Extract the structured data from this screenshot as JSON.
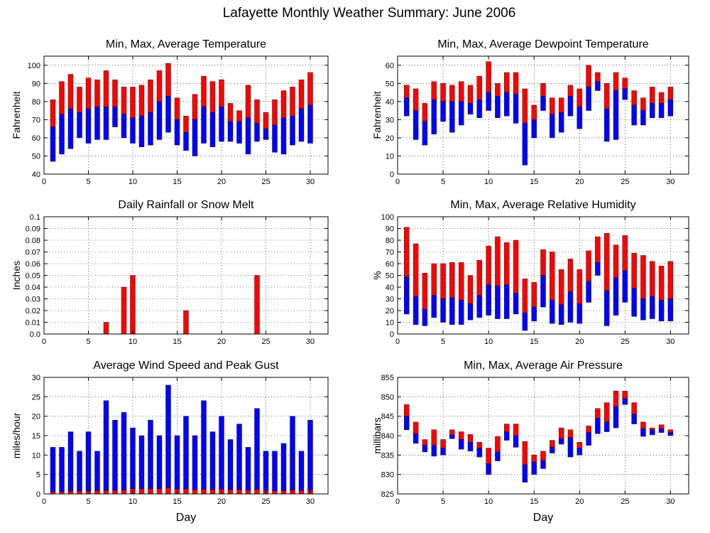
{
  "title": "Lafayette Monthly Weather Summary: June 2006",
  "colors": {
    "upper": "#ff0000",
    "lower": "#0000ff",
    "grid": "#000000"
  },
  "chart_data": [
    {
      "type": "bar",
      "title": "Min, Max, Average Temperature",
      "xlabel": "",
      "ylabel": "Fahrenheit",
      "ylim": [
        40,
        105
      ],
      "yticks": [
        40,
        50,
        60,
        70,
        80,
        90,
        100
      ],
      "xticks": [
        0,
        5,
        10,
        15,
        20,
        25,
        30
      ],
      "style": "floating",
      "x": [
        1,
        2,
        3,
        4,
        5,
        6,
        7,
        8,
        9,
        10,
        11,
        12,
        13,
        14,
        15,
        16,
        17,
        18,
        19,
        20,
        21,
        22,
        23,
        24,
        25,
        26,
        27,
        28,
        29,
        30
      ],
      "min": [
        47,
        51,
        54,
        60,
        57,
        59,
        59,
        66,
        60,
        57,
        55,
        56,
        59,
        63,
        56,
        53,
        50,
        57,
        55,
        58,
        58,
        57,
        51,
        58,
        59,
        52,
        51,
        56,
        58,
        57
      ],
      "avg": [
        66,
        73,
        76,
        74,
        76,
        77,
        77,
        77,
        73,
        71,
        72,
        74,
        80,
        83,
        70,
        63,
        70,
        77,
        74,
        77,
        69,
        69,
        71,
        68,
        65,
        67,
        71,
        72,
        76,
        78
      ],
      "max": [
        81,
        91,
        95,
        88,
        93,
        92,
        97,
        92,
        88,
        88,
        89,
        92,
        97,
        101,
        82,
        72,
        84,
        94,
        91,
        92,
        79,
        75,
        89,
        81,
        74,
        81,
        86,
        88,
        92,
        96
      ]
    },
    {
      "type": "bar",
      "title": "Min, Max, Average Dewpoint Temperature",
      "xlabel": "",
      "ylabel": "Fahrenheit",
      "ylim": [
        0,
        65
      ],
      "yticks": [
        0,
        10,
        20,
        30,
        40,
        50,
        60
      ],
      "xticks": [
        0,
        5,
        10,
        15,
        20,
        25,
        30
      ],
      "style": "floating",
      "x": [
        1,
        2,
        3,
        4,
        5,
        6,
        7,
        8,
        9,
        10,
        11,
        12,
        13,
        14,
        15,
        16,
        17,
        18,
        19,
        20,
        21,
        22,
        23,
        24,
        25,
        26,
        27,
        28,
        29,
        30
      ],
      "min": [
        32,
        19,
        16,
        22,
        29,
        23,
        27,
        33,
        31,
        35,
        31,
        32,
        28,
        5,
        20,
        35,
        20,
        23,
        32,
        25,
        35,
        46,
        18,
        19,
        41,
        27,
        27,
        31,
        31,
        32
      ],
      "avg": [
        42,
        35,
        29,
        41,
        40,
        40,
        40,
        39,
        41,
        45,
        43,
        45,
        44,
        28,
        30,
        43,
        33,
        34,
        43,
        37,
        48,
        51,
        36,
        46,
        47,
        38,
        35,
        39,
        39,
        41
      ],
      "max": [
        49,
        47,
        39,
        51,
        50,
        49,
        51,
        49,
        54,
        62,
        50,
        56,
        56,
        47,
        38,
        50,
        42,
        42,
        49,
        47,
        60,
        56,
        50,
        56,
        53,
        46,
        42,
        48,
        45,
        48
      ]
    },
    {
      "type": "bar",
      "title": "Daily Rainfall or Snow Melt",
      "xlabel": "",
      "ylabel": "Inches",
      "ylim": [
        0,
        0.1
      ],
      "yticks": [
        0,
        0.01,
        0.02,
        0.03,
        0.04,
        0.05,
        0.06,
        0.07,
        0.08,
        0.09,
        0.1
      ],
      "ytick_labels": [
        "0.0",
        "0.01",
        "0.02",
        "0.03",
        "0.04",
        "0.05",
        "0.06",
        "0.07",
        "0.08",
        "0.09",
        "0.1"
      ],
      "xticks": [
        0,
        5,
        10,
        15,
        20,
        25,
        30
      ],
      "style": "simple",
      "x": [
        1,
        2,
        3,
        4,
        5,
        6,
        7,
        8,
        9,
        10,
        11,
        12,
        13,
        14,
        15,
        16,
        17,
        18,
        19,
        20,
        21,
        22,
        23,
        24,
        25,
        26,
        27,
        28,
        29,
        30
      ],
      "values": [
        0,
        0,
        0,
        0,
        0,
        0,
        0.01,
        0,
        0.04,
        0.05,
        0,
        0,
        0,
        0,
        0,
        0.02,
        0,
        0,
        0,
        0,
        0,
        0,
        0,
        0.05,
        0,
        0,
        0,
        0,
        0,
        0
      ]
    },
    {
      "type": "bar",
      "title": "Min, Max, Average Relative Humidity",
      "xlabel": "",
      "ylabel": "%",
      "ylim": [
        0,
        100
      ],
      "yticks": [
        0,
        10,
        20,
        30,
        40,
        50,
        60,
        70,
        80,
        90,
        100
      ],
      "xticks": [
        0,
        5,
        10,
        15,
        20,
        25,
        30
      ],
      "style": "floating",
      "x": [
        1,
        2,
        3,
        4,
        5,
        6,
        7,
        8,
        9,
        10,
        11,
        12,
        13,
        14,
        15,
        16,
        17,
        18,
        19,
        20,
        21,
        22,
        23,
        24,
        25,
        26,
        27,
        28,
        29,
        30
      ],
      "min": [
        17,
        8,
        7,
        14,
        10,
        8,
        8,
        12,
        14,
        16,
        13,
        13,
        17,
        3,
        11,
        23,
        9,
        8,
        10,
        9,
        27,
        50,
        7,
        16,
        27,
        15,
        12,
        13,
        11,
        11
      ],
      "avg": [
        49,
        32,
        21,
        33,
        30,
        31,
        29,
        26,
        33,
        42,
        41,
        42,
        35,
        18,
        23,
        50,
        29,
        25,
        36,
        26,
        45,
        61,
        37,
        48,
        54,
        39,
        30,
        32,
        29,
        30
      ],
      "max": [
        91,
        77,
        52,
        60,
        60,
        61,
        61,
        50,
        63,
        75,
        83,
        78,
        80,
        47,
        44,
        72,
        70,
        55,
        64,
        55,
        71,
        83,
        86,
        76,
        84,
        69,
        67,
        62,
        58,
        62
      ]
    },
    {
      "type": "bar",
      "title": "Average Wind Speed and Peak Gust",
      "xlabel": "Day",
      "ylabel": "miles/hour",
      "ylim": [
        0,
        30
      ],
      "yticks": [
        0,
        5,
        10,
        15,
        20,
        25,
        30
      ],
      "xticks": [
        0,
        5,
        10,
        15,
        20,
        25,
        30
      ],
      "style": "stacked",
      "x": [
        1,
        2,
        3,
        4,
        5,
        6,
        7,
        8,
        9,
        10,
        11,
        12,
        13,
        14,
        15,
        16,
        17,
        18,
        19,
        20,
        21,
        22,
        23,
        24,
        25,
        26,
        27,
        28,
        29,
        30
      ],
      "series": [
        {
          "name": "Average Wind Speed",
          "values": [
            0.6,
            0.6,
            0.7,
            0.8,
            0.8,
            0.9,
            0.9,
            0.9,
            1.0,
            1.3,
            1.3,
            1.3,
            1.3,
            1.6,
            1.3,
            1.3,
            1.1,
            1.2,
            1.1,
            1.2,
            1.1,
            1.1,
            0.9,
            1.2,
            0.9,
            0.8,
            0.8,
            1.0,
            0.9,
            1.0
          ]
        },
        {
          "name": "Peak Gust",
          "values": [
            12,
            12,
            16,
            11,
            16,
            11,
            24,
            19,
            21,
            17,
            15,
            19,
            15,
            28,
            15,
            20,
            15,
            24,
            16,
            20,
            14,
            18,
            12,
            22,
            11,
            11,
            13,
            20,
            11,
            19
          ]
        }
      ]
    },
    {
      "type": "bar",
      "title": "Min, Max, Average Air Pressure",
      "xlabel": "Day",
      "ylabel": "millibars",
      "ylim": [
        825,
        855
      ],
      "yticks": [
        825,
        830,
        835,
        840,
        845,
        850,
        855
      ],
      "xticks": [
        0,
        5,
        10,
        15,
        20,
        25,
        30
      ],
      "style": "floating",
      "x": [
        1,
        2,
        3,
        4,
        5,
        6,
        7,
        8,
        9,
        10,
        11,
        12,
        13,
        14,
        15,
        16,
        17,
        18,
        19,
        20,
        21,
        22,
        23,
        24,
        25,
        26,
        27,
        28,
        29,
        30
      ],
      "min": [
        841.5,
        838,
        835.8,
        834.7,
        835,
        839.2,
        836.5,
        836,
        834.5,
        830,
        833.5,
        838.8,
        837,
        828,
        830,
        831.5,
        835.5,
        837.8,
        834.5,
        835,
        837.5,
        840.5,
        841,
        842,
        848,
        843,
        839.8,
        840.2,
        840.8,
        840
      ],
      "avg": [
        845,
        840.5,
        837.5,
        837.5,
        836.8,
        840.2,
        839,
        838.3,
        836.8,
        832.8,
        835.8,
        841,
        840,
        832.5,
        833.2,
        833.5,
        837,
        839.2,
        839.5,
        836.8,
        840.8,
        844.5,
        843.5,
        847.5,
        849.5,
        845.5,
        841.8,
        841.5,
        841.8,
        840.8
      ],
      "max": [
        848,
        843.5,
        839,
        841.5,
        839,
        841.5,
        841,
        840.3,
        838.3,
        836.8,
        839.8,
        843,
        843,
        838.5,
        835,
        836,
        838.8,
        842,
        841.5,
        838.3,
        842.5,
        847,
        848.5,
        851.5,
        851.5,
        848.5,
        843.5,
        842,
        842.8,
        841.5
      ]
    }
  ]
}
